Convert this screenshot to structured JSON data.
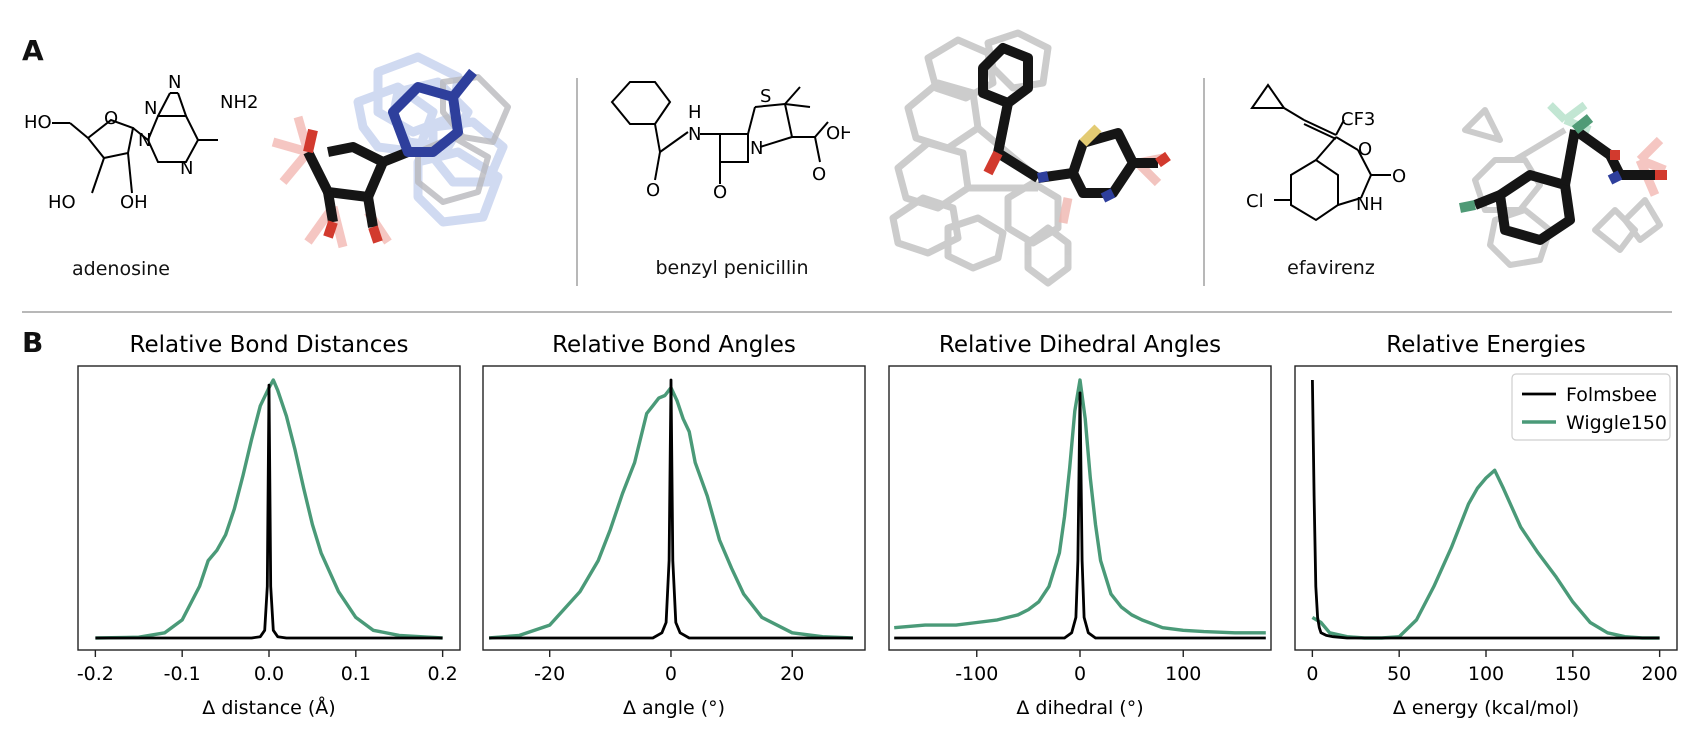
{
  "panel_a": {
    "label": "A",
    "molecules": [
      {
        "name": "adenosine",
        "atom_labels": [
          "HO",
          "HO",
          "OH",
          "N",
          "N",
          "N",
          "N",
          "NH2",
          "O"
        ]
      },
      {
        "name": "benzyl penicillin",
        "atom_labels": [
          "H",
          "N",
          "S",
          "N",
          "O",
          "O",
          "OH",
          "O"
        ]
      },
      {
        "name": "efavirenz",
        "atom_labels": [
          "CF3",
          "O",
          "O",
          "NH",
          "Cl"
        ]
      }
    ]
  },
  "panel_b": {
    "label": "B"
  },
  "colors": {
    "folmsbee": "#000000",
    "wiggle150": "#4a9a78"
  },
  "chart_data": [
    {
      "type": "line",
      "title": "Relative Bond Distances",
      "xlabel": "Δ distance (Å)",
      "ylabel": "",
      "xlim": [
        -0.22,
        0.22
      ],
      "xticks": [
        -0.2,
        -0.1,
        0.0,
        0.1,
        0.2
      ],
      "xtick_labels": [
        "-0.2",
        "-0.1",
        "0.0",
        "0.1",
        "0.2"
      ],
      "series": [
        {
          "name": "Wiggle150",
          "x": [
            -0.2,
            -0.15,
            -0.12,
            -0.1,
            -0.08,
            -0.07,
            -0.06,
            -0.05,
            -0.04,
            -0.03,
            -0.02,
            -0.01,
            0.0,
            0.005,
            0.01,
            0.02,
            0.03,
            0.04,
            0.05,
            0.06,
            0.08,
            0.1,
            0.12,
            0.15,
            0.2
          ],
          "y": [
            0.0,
            0.003,
            0.02,
            0.07,
            0.2,
            0.3,
            0.34,
            0.4,
            0.5,
            0.63,
            0.77,
            0.9,
            0.97,
            1.0,
            0.96,
            0.86,
            0.73,
            0.58,
            0.44,
            0.33,
            0.18,
            0.08,
            0.03,
            0.01,
            0.0
          ]
        },
        {
          "name": "Folmsbee",
          "x": [
            -0.2,
            -0.02,
            -0.01,
            -0.005,
            -0.002,
            0.0,
            0.002,
            0.005,
            0.01,
            0.02,
            0.2
          ],
          "y": [
            0.0,
            0.0,
            0.005,
            0.03,
            0.2,
            0.98,
            0.2,
            0.03,
            0.005,
            0.0,
            0.0
          ]
        }
      ]
    },
    {
      "type": "line",
      "title": "Relative Bond Angles",
      "xlabel": "Δ angle (°)",
      "ylabel": "",
      "xlim": [
        -31,
        32
      ],
      "xticks": [
        -20,
        0,
        20
      ],
      "xtick_labels": [
        "-20",
        "0",
        "20"
      ],
      "series": [
        {
          "name": "Wiggle150",
          "x": [
            -30,
            -25,
            -20,
            -15,
            -12,
            -10,
            -8,
            -6,
            -4,
            -3,
            -2,
            -1,
            0,
            1,
            2,
            3,
            4,
            6,
            8,
            10,
            12,
            15,
            20,
            25,
            30
          ],
          "y": [
            0.0,
            0.01,
            0.05,
            0.18,
            0.3,
            0.42,
            0.56,
            0.68,
            0.87,
            0.9,
            0.93,
            0.94,
            0.97,
            0.92,
            0.85,
            0.8,
            0.68,
            0.55,
            0.38,
            0.27,
            0.17,
            0.08,
            0.02,
            0.005,
            0.0
          ]
        },
        {
          "name": "Folmsbee",
          "x": [
            -30,
            -3,
            -1.5,
            -0.8,
            -0.3,
            0,
            0.3,
            0.8,
            1.5,
            3,
            30
          ],
          "y": [
            0.0,
            0.0,
            0.02,
            0.06,
            0.3,
            1.0,
            0.3,
            0.06,
            0.02,
            0.0,
            0.0
          ]
        }
      ]
    },
    {
      "type": "line",
      "title": "Relative Dihedral Angles",
      "xlabel": "Δ dihedral (°)",
      "ylabel": "",
      "xlim": [
        -185,
        185
      ],
      "xticks": [
        -100,
        0,
        100
      ],
      "xtick_labels": [
        "-100",
        "0",
        "100"
      ],
      "series": [
        {
          "name": "Wiggle150",
          "x": [
            -180,
            -150,
            -120,
            -100,
            -80,
            -60,
            -50,
            -40,
            -30,
            -20,
            -15,
            -10,
            -5,
            0,
            5,
            10,
            15,
            20,
            30,
            40,
            50,
            60,
            80,
            100,
            120,
            150,
            180
          ],
          "y": [
            0.04,
            0.05,
            0.05,
            0.06,
            0.07,
            0.09,
            0.11,
            0.14,
            0.2,
            0.33,
            0.47,
            0.66,
            0.88,
            1.0,
            0.85,
            0.62,
            0.44,
            0.3,
            0.17,
            0.12,
            0.09,
            0.07,
            0.04,
            0.03,
            0.025,
            0.02,
            0.02
          ]
        },
        {
          "name": "Folmsbee",
          "x": [
            -180,
            -15,
            -8,
            -4,
            -2,
            0,
            2,
            4,
            8,
            15,
            180
          ],
          "y": [
            0.0,
            0.0,
            0.02,
            0.08,
            0.3,
            0.95,
            0.3,
            0.08,
            0.02,
            0.0,
            0.0
          ]
        }
      ]
    },
    {
      "type": "line",
      "title": "Relative Energies",
      "xlabel": "Δ energy (kcal/mol)",
      "ylabel": "",
      "xlim": [
        -10,
        210
      ],
      "xticks": [
        0,
        50,
        100,
        150,
        200
      ],
      "xtick_labels": [
        "0",
        "50",
        "100",
        "150",
        "200"
      ],
      "legend": {
        "position": "top-right",
        "entries": [
          "Folmsbee",
          "Wiggle150"
        ]
      },
      "series": [
        {
          "name": "Folmsbee",
          "x": [
            0,
            1,
            2,
            3,
            4,
            5,
            8,
            12,
            20,
            50,
            100,
            150,
            200
          ],
          "y": [
            1.0,
            0.55,
            0.2,
            0.08,
            0.04,
            0.02,
            0.01,
            0.005,
            0.0,
            0.0,
            0.0,
            0.0,
            0.0
          ]
        },
        {
          "name": "Wiggle150",
          "x": [
            0,
            5,
            10,
            20,
            30,
            40,
            50,
            60,
            70,
            80,
            90,
            95,
            100,
            105,
            110,
            120,
            130,
            140,
            150,
            160,
            170,
            180,
            190,
            200
          ],
          "y": [
            0.08,
            0.06,
            0.02,
            0.005,
            0.0,
            0.0,
            0.005,
            0.07,
            0.2,
            0.35,
            0.52,
            0.58,
            0.62,
            0.65,
            0.58,
            0.43,
            0.33,
            0.24,
            0.14,
            0.06,
            0.02,
            0.005,
            0.0,
            0.0
          ]
        }
      ]
    }
  ]
}
